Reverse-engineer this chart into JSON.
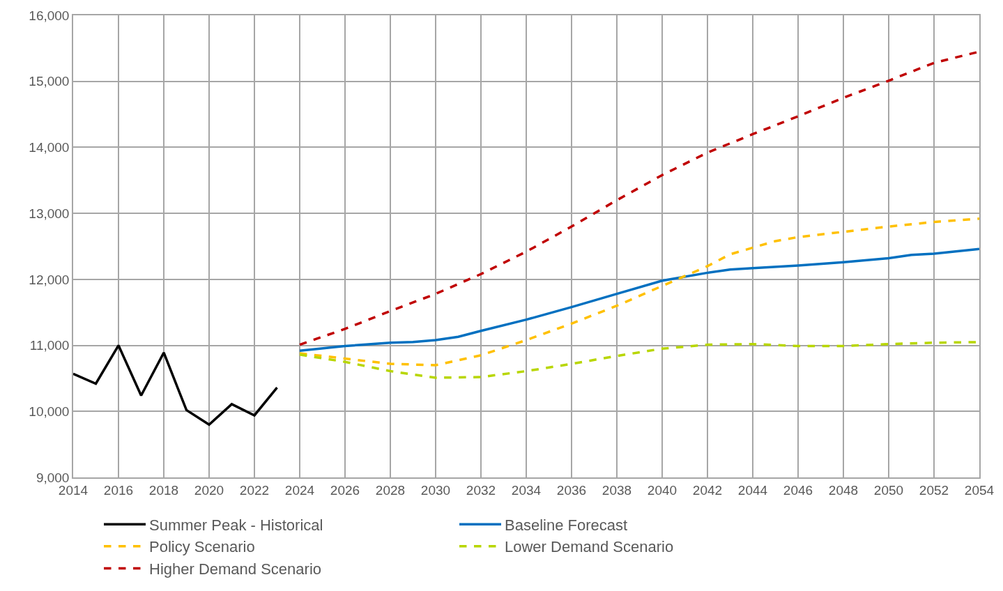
{
  "chart_data": {
    "type": "line",
    "xlim": [
      2014,
      2054
    ],
    "xticks": [
      2014,
      2016,
      2018,
      2020,
      2022,
      2024,
      2026,
      2028,
      2030,
      2032,
      2034,
      2036,
      2038,
      2040,
      2042,
      2044,
      2046,
      2048,
      2050,
      2052,
      2054
    ],
    "ylim": [
      9000,
      16000
    ],
    "yticks": [
      {
        "value": 9000,
        "label": "9,000"
      },
      {
        "value": 10000,
        "label": "10,000"
      },
      {
        "value": 11000,
        "label": "11,000"
      },
      {
        "value": 12000,
        "label": "12,000"
      },
      {
        "value": 13000,
        "label": "13,000"
      },
      {
        "value": 14000,
        "label": "14,000"
      },
      {
        "value": 15000,
        "label": "15,000"
      },
      {
        "value": 16000,
        "label": "16,000"
      }
    ],
    "grid": true,
    "legend": "bottom",
    "marker": "none",
    "series": [
      {
        "name": "Summer Peak - Historical",
        "color": "#000000",
        "line_style": "solid",
        "x": [
          2014,
          2015,
          2016,
          2017,
          2018,
          2019,
          2020,
          2021,
          2022,
          2023
        ],
        "values": [
          10570,
          10420,
          11000,
          10240,
          10890,
          10020,
          9800,
          10110,
          9940,
          10360
        ]
      },
      {
        "name": "Baseline Forecast",
        "color": "#0070c0",
        "line_style": "solid",
        "x": [
          2024,
          2026,
          2028,
          2029,
          2030,
          2031,
          2032,
          2034,
          2036,
          2038,
          2040,
          2042,
          2043,
          2044,
          2046,
          2048,
          2050,
          2051,
          2052,
          2054
        ],
        "values": [
          10920,
          10990,
          11040,
          11050,
          11080,
          11130,
          11220,
          11390,
          11580,
          11780,
          11980,
          12100,
          12150,
          12170,
          12210,
          12260,
          12320,
          12370,
          12390,
          12460
        ]
      },
      {
        "name": "Policy Scenario",
        "color": "#ffc000",
        "line_style": "dashed",
        "x": [
          2024,
          2026,
          2028,
          2030,
          2032,
          2034,
          2036,
          2038,
          2040,
          2042,
          2043,
          2044,
          2045,
          2046,
          2048,
          2050,
          2052,
          2054
        ],
        "values": [
          10880,
          10800,
          10720,
          10700,
          10850,
          11080,
          11330,
          11600,
          11900,
          12200,
          12380,
          12480,
          12580,
          12640,
          12720,
          12800,
          12870,
          12920
        ]
      },
      {
        "name": "Lower Demand Scenario",
        "color": "#b8d600",
        "line_style": "dashed",
        "x": [
          2024,
          2026,
          2028,
          2030,
          2032,
          2034,
          2036,
          2038,
          2040,
          2042,
          2044,
          2046,
          2048,
          2050,
          2052,
          2054
        ],
        "values": [
          10860,
          10750,
          10610,
          10510,
          10520,
          10610,
          10720,
          10840,
          10950,
          11010,
          11020,
          10990,
          10990,
          11020,
          11040,
          11050
        ]
      },
      {
        "name": "Higher Demand Scenario",
        "color": "#c00000",
        "line_style": "dashed",
        "x": [
          2024,
          2026,
          2028,
          2030,
          2032,
          2034,
          2036,
          2038,
          2040,
          2042,
          2044,
          2046,
          2048,
          2050,
          2052,
          2054
        ],
        "values": [
          11010,
          11250,
          11520,
          11780,
          12080,
          12420,
          12800,
          13200,
          13580,
          13920,
          14200,
          14470,
          14750,
          15010,
          15280,
          15450
        ]
      }
    ]
  }
}
